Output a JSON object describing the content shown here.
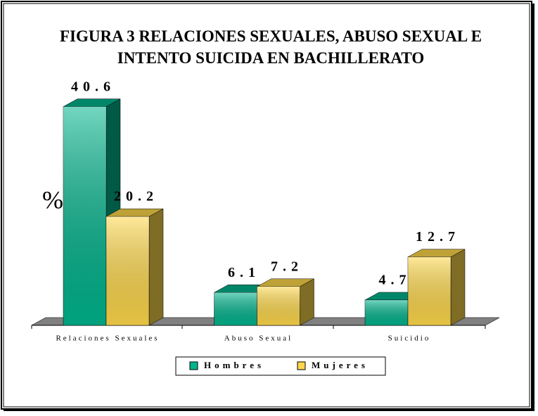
{
  "chart_data": {
    "type": "bar3d",
    "title": "FIGURA 3 RELACIONES SEXUALES, ABUSO SEXUAL E INTENTO SUICIDA EN BACHILLERATO",
    "y_label": "%",
    "categories": [
      "Relaciones Sexuales",
      "Abuso Sexual",
      "Suicidio"
    ],
    "series": [
      {
        "name": "Hombres",
        "color": "#00b48c",
        "values": [
          40.6,
          6.1,
          4.7
        ]
      },
      {
        "name": "Mujeres",
        "color": "#ffd84a",
        "values": [
          20.2,
          7.2,
          12.7
        ]
      }
    ],
    "ylim": [
      0,
      45
    ],
    "legend": "bottom"
  }
}
